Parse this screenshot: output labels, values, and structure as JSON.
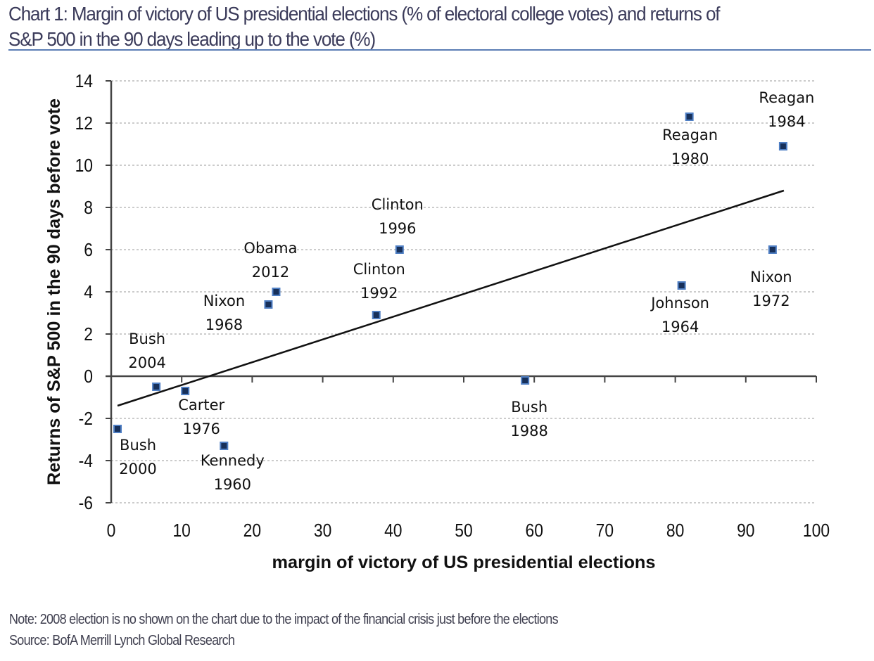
{
  "header": {
    "title_line1": "Chart 1: Margin of victory of US presidential elections (% of electoral college votes) and returns of",
    "title_line2": "S&P 500 in the 90 days leading up to the vote (%)"
  },
  "footer": {
    "note": "Note: 2008 election is no shown on the chart due to the impact of the financial crisis just before the elections",
    "source": "Source: BofA Merrill Lynch Global Research"
  },
  "colors": {
    "marker_fill": "#17305a",
    "marker_border": "#4f7fc4",
    "trendline": "#111111",
    "gridline": "#9a9a9a",
    "axis": "#444444",
    "title_rule": "#5b7db4"
  },
  "chart_data": {
    "type": "scatter",
    "title": "Margin of victory of US presidential elections (% of electoral college votes) and returns of S&P 500 in the 90 days leading up to the vote (%)",
    "xlabel": "margin of victory of US presidential elections",
    "ylabel": "Returns of S&P 500 in the 90 days before vote",
    "xlim": [
      0,
      100
    ],
    "ylim": [
      -6,
      14
    ],
    "xticks": [
      0,
      10,
      20,
      30,
      40,
      50,
      60,
      70,
      80,
      90,
      100
    ],
    "yticks": [
      -6,
      -4,
      -2,
      0,
      2,
      4,
      6,
      8,
      10,
      12,
      14
    ],
    "grid": "horizontal dashed",
    "legend": "none",
    "points": [
      {
        "name": "Kennedy",
        "year": "1960",
        "x": 16.0,
        "y": -3.3
      },
      {
        "name": "Johnson",
        "year": "1964",
        "x": 80.9,
        "y": 4.3
      },
      {
        "name": "Nixon",
        "year": "1968",
        "x": 22.3,
        "y": 3.4
      },
      {
        "name": "Nixon",
        "year": "1972",
        "x": 93.8,
        "y": 6.0
      },
      {
        "name": "Carter",
        "year": "1976",
        "x": 10.5,
        "y": -0.7
      },
      {
        "name": "Reagan",
        "year": "1980",
        "x": 82.0,
        "y": 12.3
      },
      {
        "name": "Reagan",
        "year": "1984",
        "x": 95.3,
        "y": 10.9
      },
      {
        "name": "Bush",
        "year": "1988",
        "x": 58.7,
        "y": -0.2
      },
      {
        "name": "Clinton",
        "year": "1992",
        "x": 37.6,
        "y": 2.9
      },
      {
        "name": "Clinton",
        "year": "1996",
        "x": 40.9,
        "y": 6.0
      },
      {
        "name": "Bush",
        "year": "2000",
        "x": 0.9,
        "y": -2.5
      },
      {
        "name": "Bush",
        "year": "2004",
        "x": 6.4,
        "y": -0.5
      },
      {
        "name": "Obama",
        "year": "2012",
        "x": 23.4,
        "y": 4.0
      }
    ],
    "trendline": {
      "type": "linear",
      "x": [
        0.9,
        95.4
      ],
      "y": [
        -1.4,
        8.8
      ]
    }
  }
}
